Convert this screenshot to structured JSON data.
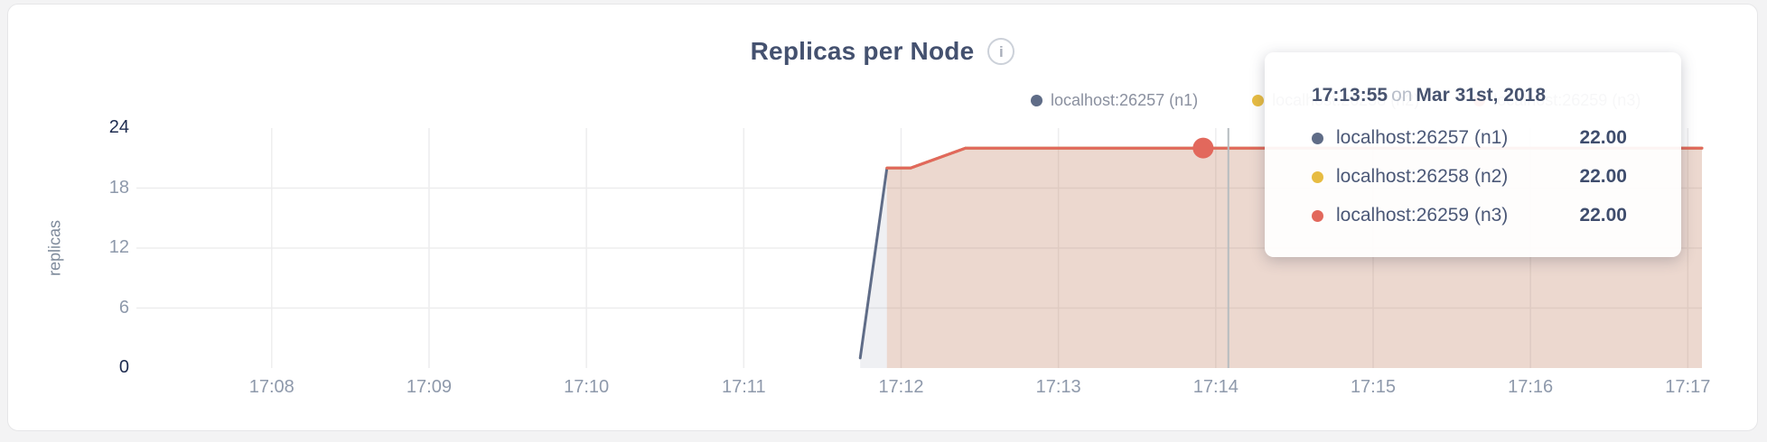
{
  "header": {
    "title": "Replicas per Node",
    "info_glyph": "i"
  },
  "legend": {
    "items": [
      {
        "label": "localhost:26257 (n1)",
        "color": "#5f6c87"
      },
      {
        "label": "localhost:26258 (n2)",
        "color": "#e7bc42"
      },
      {
        "label": "localhost:26259 (n3)",
        "color": "#e2685c"
      }
    ]
  },
  "tooltip": {
    "time": "17:13:55",
    "connector": "on",
    "date": "Mar 31st, 2018",
    "rows": [
      {
        "label": "localhost:26257 (n1)",
        "value": "22.00",
        "color": "#5f6c87"
      },
      {
        "label": "localhost:26258 (n2)",
        "value": "22.00",
        "color": "#e7bc42"
      },
      {
        "label": "localhost:26259 (n3)",
        "value": "22.00",
        "color": "#e2685c"
      }
    ]
  },
  "chart_data": {
    "type": "area",
    "title": "Replicas per Node",
    "xlabel": "",
    "ylabel": "replicas",
    "x_unit": "minutes after 17:00",
    "x_domain": [
      7.14,
      17.09
    ],
    "y_domain": [
      0,
      24
    ],
    "grid": true,
    "legend_position": "top-right",
    "x_ticks": [
      {
        "v": 8,
        "label": "17:08"
      },
      {
        "v": 9,
        "label": "17:09"
      },
      {
        "v": 10,
        "label": "17:10"
      },
      {
        "v": 11,
        "label": "17:11"
      },
      {
        "v": 12,
        "label": "17:12"
      },
      {
        "v": 13,
        "label": "17:13"
      },
      {
        "v": 14,
        "label": "17:14"
      },
      {
        "v": 15,
        "label": "17:15"
      },
      {
        "v": 16,
        "label": "17:16"
      },
      {
        "v": 17,
        "label": "17:17"
      }
    ],
    "y_ticks": [
      {
        "v": 0,
        "label": "0",
        "emphasis": true,
        "gridline": false
      },
      {
        "v": 6,
        "label": "6",
        "emphasis": false,
        "gridline": true
      },
      {
        "v": 12,
        "label": "12",
        "emphasis": false,
        "gridline": true
      },
      {
        "v": 18,
        "label": "18",
        "emphasis": false,
        "gridline": true
      },
      {
        "v": 24,
        "label": "24",
        "emphasis": true,
        "gridline": false
      }
    ],
    "series": [
      {
        "name": "localhost:26257 (n1)",
        "color": "#5f6c87",
        "fill_opacity": 0.1,
        "points": [
          [
            11.74,
            1
          ],
          [
            11.91,
            20
          ],
          [
            12.06,
            20
          ],
          [
            12.41,
            22
          ],
          [
            17.09,
            22
          ]
        ]
      },
      {
        "name": "localhost:26258 (n2)",
        "color": "#e7bc42",
        "fill_opacity": 0.1,
        "points": [
          [
            11.91,
            20
          ],
          [
            12.06,
            20
          ],
          [
            12.41,
            22
          ],
          [
            17.09,
            22
          ]
        ]
      },
      {
        "name": "localhost:26259 (n3)",
        "color": "#e2685c",
        "fill_opacity": 0.13,
        "points": [
          [
            11.91,
            20
          ],
          [
            12.06,
            20
          ],
          [
            12.41,
            22
          ],
          [
            17.09,
            22
          ]
        ]
      }
    ],
    "hover": {
      "x": 13.92,
      "y": 22,
      "series": "localhost:26259 (n3)",
      "value_format": "22.00",
      "crosshair_x": 14.08
    },
    "colors": {
      "grid": "#ededee",
      "crosshair": "#b6bcc0",
      "tick_emphasis": "#1e2c50",
      "tick_normal": "#8e99ab"
    }
  }
}
